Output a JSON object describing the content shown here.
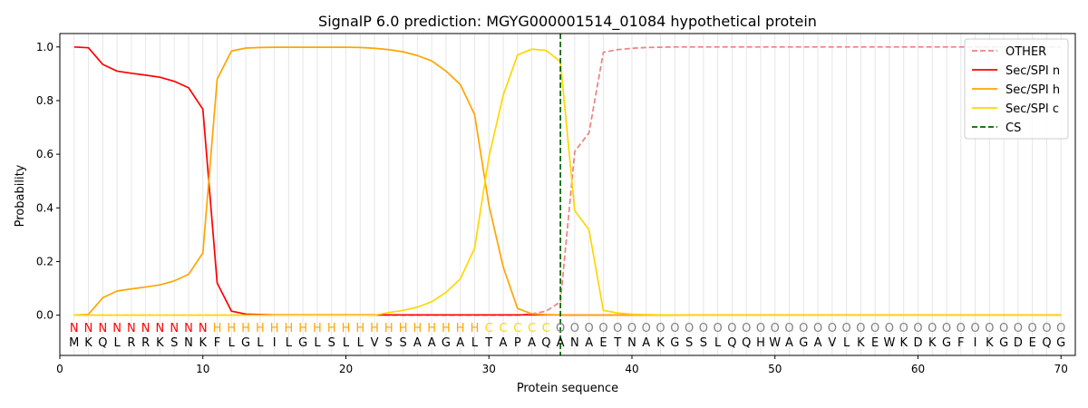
{
  "chart_data": {
    "type": "line",
    "title": "SignalP 6.0 prediction: MGYG000001514_01084 hypothetical protein",
    "xlabel": "Protein sequence",
    "ylabel": "Probability",
    "xlim": [
      0,
      71
    ],
    "ylim": [
      -0.15,
      1.05
    ],
    "xticks": [
      0,
      10,
      20,
      30,
      40,
      50,
      60,
      70
    ],
    "yticks": [
      0.0,
      0.2,
      0.4,
      0.6,
      0.8,
      1.0
    ],
    "grid": "vertical lines at each residue",
    "legend_position": "top-right",
    "positions": [
      1,
      2,
      3,
      4,
      5,
      6,
      7,
      8,
      9,
      10,
      11,
      12,
      13,
      14,
      15,
      16,
      17,
      18,
      19,
      20,
      21,
      22,
      23,
      24,
      25,
      26,
      27,
      28,
      29,
      30,
      31,
      32,
      33,
      34,
      35,
      36,
      37,
      38,
      39,
      40,
      41,
      42,
      43,
      44,
      45,
      46,
      47,
      48,
      49,
      50,
      51,
      52,
      53,
      54,
      55,
      56,
      57,
      58,
      59,
      60,
      61,
      62,
      63,
      64,
      65,
      66,
      67,
      68,
      69,
      70
    ],
    "sequence": [
      "M",
      "K",
      "Q",
      "L",
      "R",
      "R",
      "K",
      "S",
      "N",
      "K",
      "F",
      "L",
      "G",
      "L",
      "I",
      "L",
      "G",
      "L",
      "S",
      "L",
      "L",
      "V",
      "S",
      "S",
      "A",
      "A",
      "G",
      "A",
      "L",
      "T",
      "A",
      "P",
      "A",
      "Q",
      "A",
      "N",
      "A",
      "E",
      "T",
      "N",
      "A",
      "K",
      "G",
      "S",
      "S",
      "L",
      "Q",
      "Q",
      "H",
      "W",
      "A",
      "G",
      "A",
      "V",
      "L",
      "K",
      "E",
      "W",
      "K",
      "D",
      "K",
      "G",
      "F",
      "I",
      "K",
      "G",
      "D",
      "E",
      "Q",
      "G"
    ],
    "region_labels": [
      "N",
      "N",
      "N",
      "N",
      "N",
      "N",
      "N",
      "N",
      "N",
      "N",
      "H",
      "H",
      "H",
      "H",
      "H",
      "H",
      "H",
      "H",
      "H",
      "H",
      "H",
      "H",
      "H",
      "H",
      "H",
      "H",
      "H",
      "H",
      "H",
      "C",
      "C",
      "C",
      "C",
      "C",
      "O",
      "O",
      "O",
      "O",
      "O",
      "O",
      "O",
      "O",
      "O",
      "O",
      "O",
      "O",
      "O",
      "O",
      "O",
      "O",
      "O",
      "O",
      "O",
      "O",
      "O",
      "O",
      "O",
      "O",
      "O",
      "O",
      "O",
      "O",
      "O",
      "O",
      "O",
      "O",
      "O",
      "O",
      "O",
      "O"
    ],
    "region_colors": {
      "N": "#ff0000",
      "H": "#ffa500",
      "C": "#ffd700",
      "O": "#808080"
    },
    "cs_position": 35,
    "series": [
      {
        "name": "OTHER",
        "color": "#f08080",
        "style": "dashed",
        "values": [
          0,
          0,
          0,
          0,
          0,
          0,
          0,
          0,
          0,
          0,
          0,
          0,
          0,
          0,
          0,
          0,
          0,
          0,
          0,
          0,
          0,
          0,
          0,
          0,
          0,
          0,
          0,
          0,
          0,
          0,
          0,
          0,
          0.005,
          0.015,
          0.05,
          0.61,
          0.68,
          0.98,
          0.99,
          0.995,
          0.998,
          0.999,
          1,
          1,
          1,
          1,
          1,
          1,
          1,
          1,
          1,
          1,
          1,
          1,
          1,
          1,
          1,
          1,
          1,
          1,
          1,
          1,
          1,
          1,
          1,
          1,
          1,
          1,
          1,
          1
        ]
      },
      {
        "name": "Sec/SPI n",
        "color": "#ff0000",
        "style": "solid",
        "values": [
          1.0,
          0.997,
          0.935,
          0.91,
          0.902,
          0.895,
          0.887,
          0.872,
          0.848,
          0.768,
          0.12,
          0.015,
          0.004,
          0.002,
          0.001,
          0.001,
          0.001,
          0.001,
          0.001,
          0.001,
          0.001,
          0.001,
          0.001,
          0.001,
          0.001,
          0.001,
          0.001,
          0.001,
          0.001,
          0.001,
          0.001,
          0.001,
          0.001,
          0.001,
          0.001,
          0,
          0,
          0,
          0,
          0,
          0,
          0,
          0,
          0,
          0,
          0,
          0,
          0,
          0,
          0,
          0,
          0,
          0,
          0,
          0,
          0,
          0,
          0,
          0,
          0,
          0,
          0,
          0,
          0,
          0,
          0,
          0,
          0,
          0,
          0
        ]
      },
      {
        "name": "Sec/SPI h",
        "color": "#ffa500",
        "style": "solid",
        "values": [
          0.0,
          0.003,
          0.065,
          0.09,
          0.098,
          0.105,
          0.113,
          0.128,
          0.152,
          0.232,
          0.88,
          0.985,
          0.996,
          0.998,
          0.999,
          0.999,
          0.999,
          0.999,
          0.999,
          0.999,
          0.998,
          0.995,
          0.99,
          0.982,
          0.968,
          0.948,
          0.91,
          0.86,
          0.748,
          0.41,
          0.18,
          0.025,
          0.005,
          0.002,
          0.001,
          0,
          0,
          0,
          0,
          0,
          0,
          0,
          0,
          0,
          0,
          0,
          0,
          0,
          0,
          0,
          0,
          0,
          0,
          0,
          0,
          0,
          0,
          0,
          0,
          0,
          0,
          0,
          0,
          0,
          0,
          0,
          0,
          0,
          0,
          0
        ]
      },
      {
        "name": "Sec/SPI c",
        "color": "#ffd700",
        "style": "solid",
        "values": [
          0,
          0,
          0,
          0,
          0,
          0,
          0,
          0,
          0,
          0,
          0,
          0,
          0,
          0,
          0,
          0,
          0,
          0,
          0,
          0,
          0,
          0,
          0.01,
          0.018,
          0.03,
          0.05,
          0.085,
          0.135,
          0.25,
          0.59,
          0.82,
          0.97,
          0.992,
          0.987,
          0.945,
          0.39,
          0.318,
          0.018,
          0.008,
          0.004,
          0.002,
          0.001,
          0.001,
          0,
          0,
          0,
          0,
          0,
          0,
          0,
          0,
          0,
          0,
          0,
          0,
          0,
          0,
          0,
          0,
          0,
          0,
          0,
          0,
          0,
          0,
          0,
          0,
          0,
          0,
          0
        ]
      },
      {
        "name": "CS",
        "color": "#006400",
        "style": "dashed"
      }
    ]
  }
}
